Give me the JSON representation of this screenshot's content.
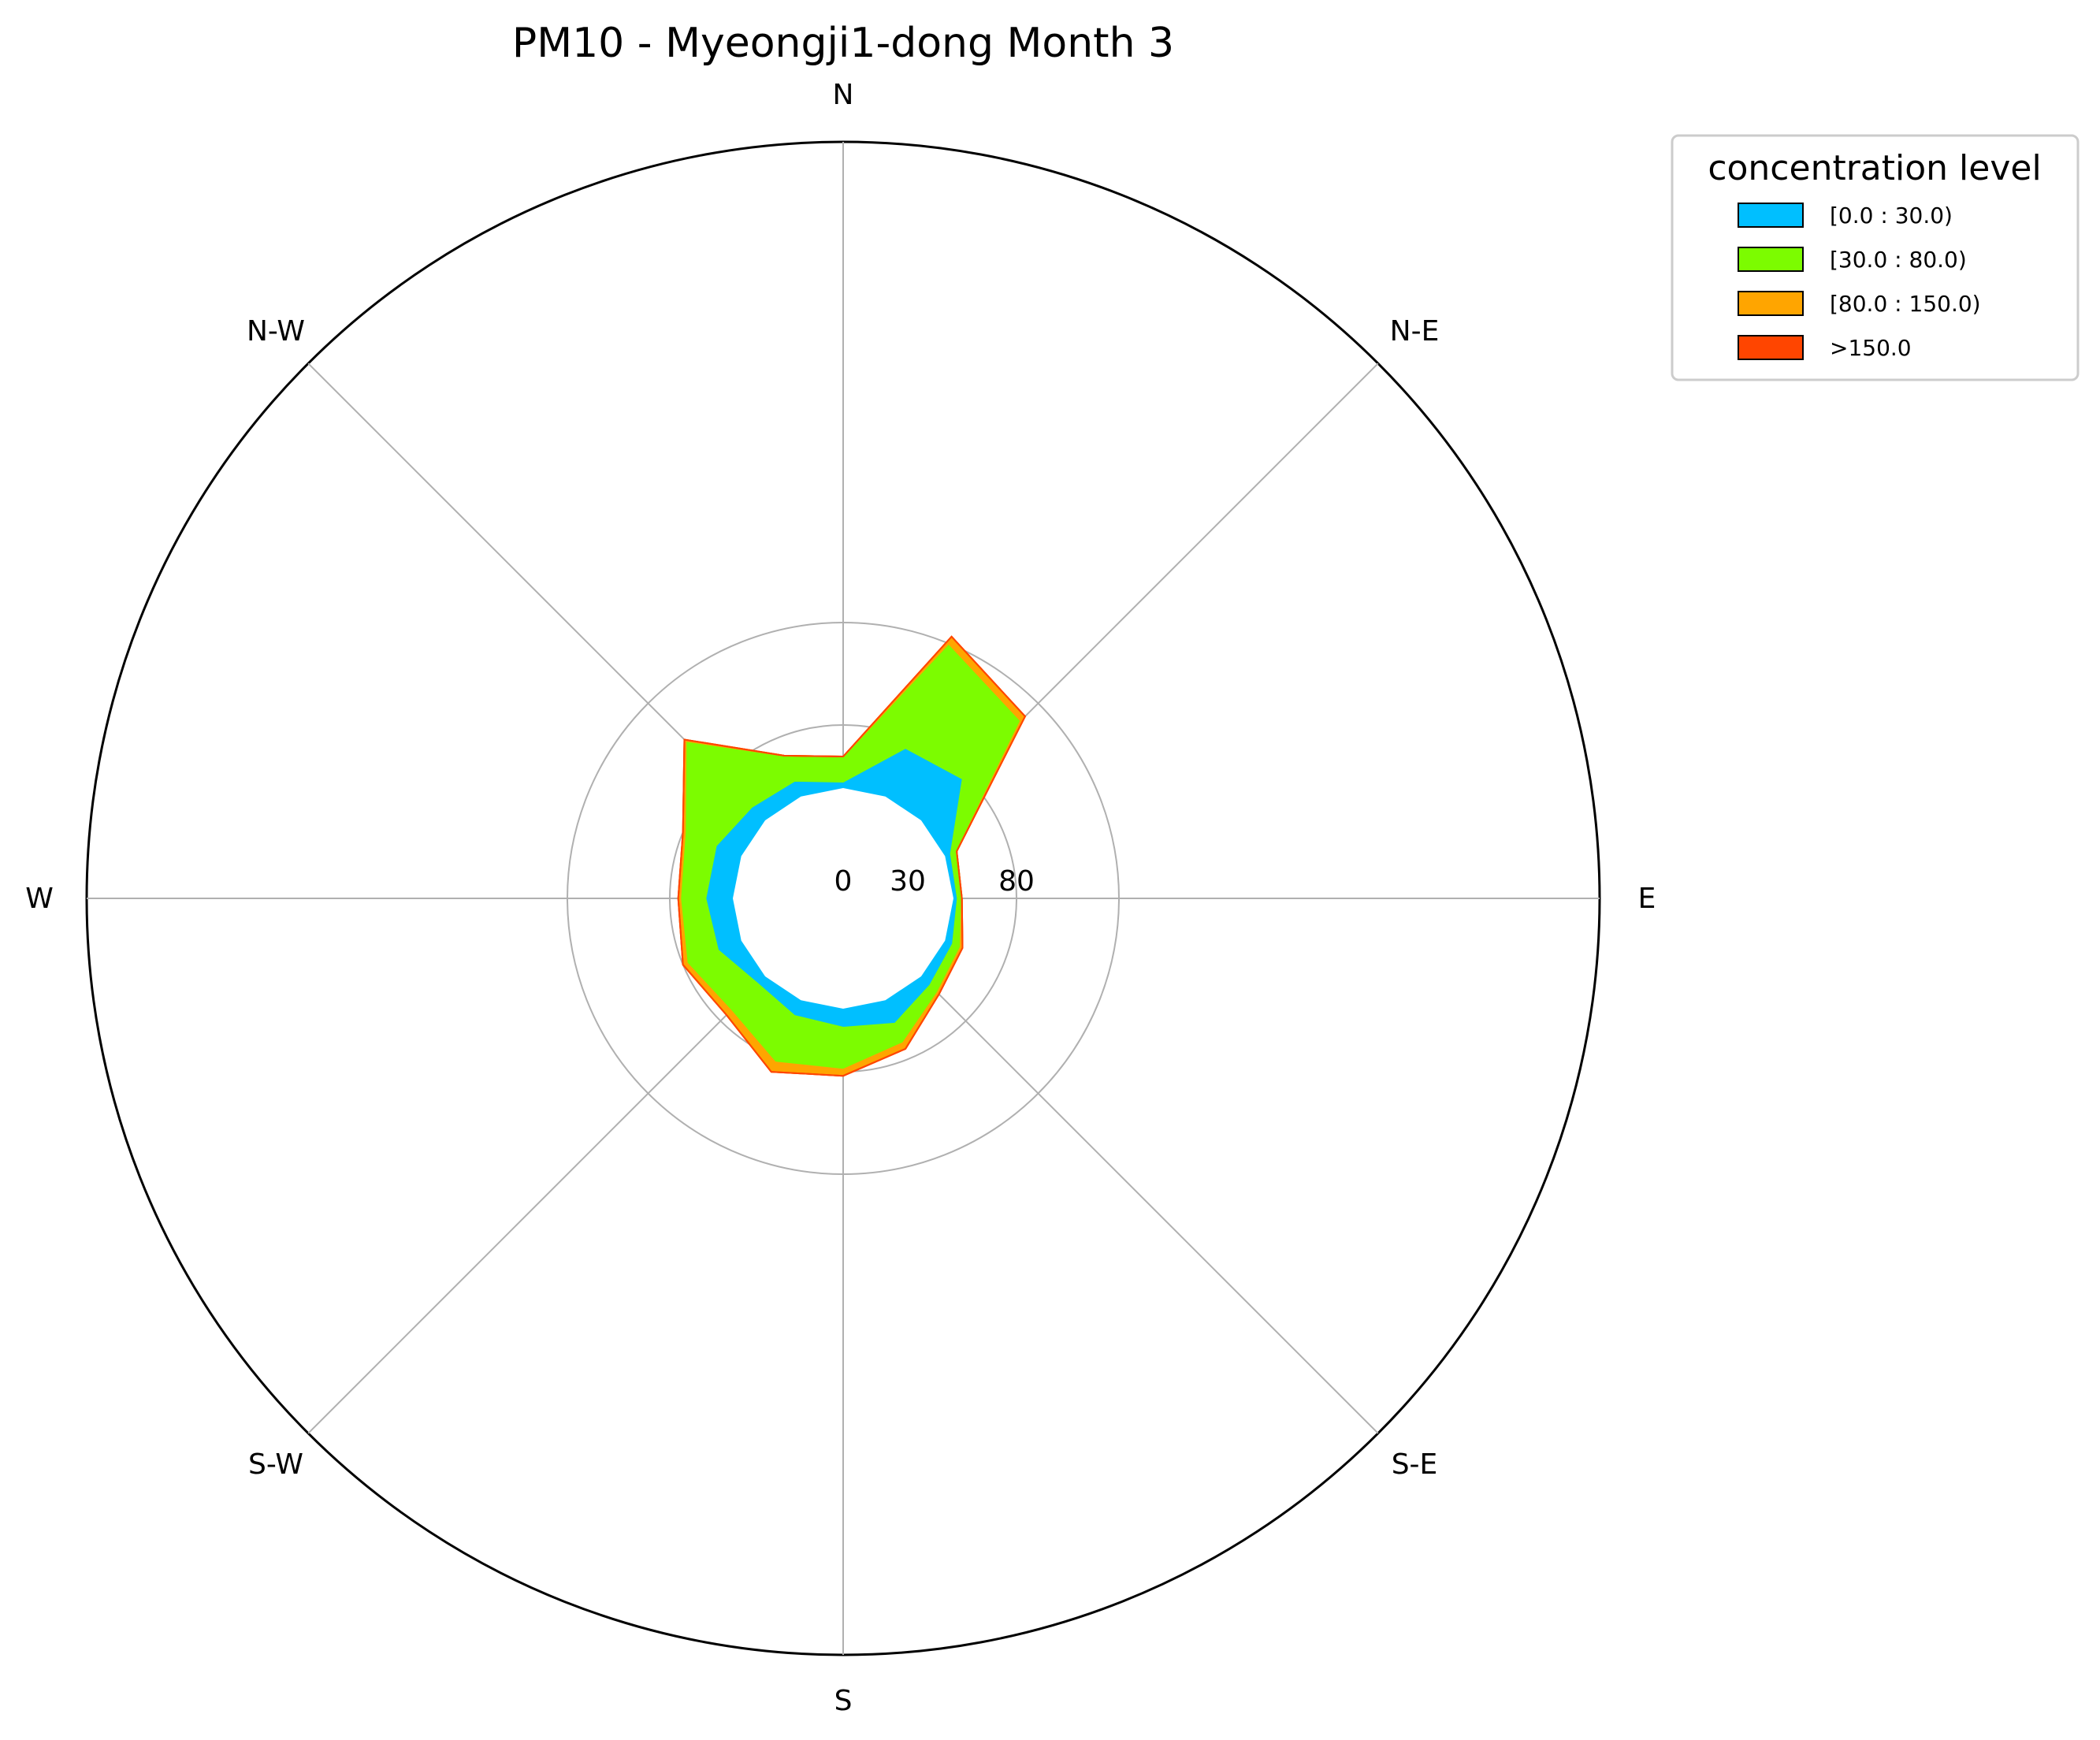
{
  "chart_data": {
    "type": "area",
    "subtype": "polar-stacked-area",
    "title": "PM10 - Myeongji1-dong Month 3",
    "direction_labels": [
      "N",
      "N-E",
      "E",
      "S-E",
      "S",
      "S-W",
      "W",
      "N-W"
    ],
    "radial_ticks": [
      "0",
      "30",
      "80"
    ],
    "grid": true,
    "legend": {
      "title": "concentration level",
      "placement": "top-right outside",
      "entries": [
        "[0.0 : 30.0)",
        "[30.0 : 80.0)",
        "[80.0 : 150.0)",
        ">150.0"
      ]
    },
    "angles_deg": [
      0,
      22.5,
      45,
      67.5,
      90,
      112.5,
      135,
      157.5,
      180,
      202.5,
      225,
      247.5,
      270,
      292.5,
      315,
      337.5
    ],
    "series": [
      {
        "name": "[0.0 : 30.0)",
        "color": "#00bfff",
        "values": [
          3,
          25,
          28,
          3,
          2,
          4,
          6,
          12,
          9,
          8,
          5,
          12,
          13,
          13,
          9,
          8
        ]
      },
      {
        "name": "[30.0 : 80.0)",
        "color": "#7cfc00",
        "values": [
          12,
          55,
          40,
          3,
          2,
          4,
          5,
          10,
          20,
          24,
          18,
          16,
          12,
          16,
          45,
          13
        ]
      },
      {
        "name": "[80.0 : 150.0)",
        "color": "#ffa500",
        "values": [
          0,
          4,
          3,
          0,
          0,
          1,
          1,
          3,
          3,
          5,
          3,
          2,
          1,
          1,
          1,
          0
        ]
      },
      {
        "name": ">150.0",
        "color": "#ff4500",
        "values": [
          0,
          0,
          0,
          0,
          0,
          0,
          0,
          0,
          0,
          0,
          0,
          0,
          0,
          0,
          0,
          0
        ]
      }
    ]
  }
}
